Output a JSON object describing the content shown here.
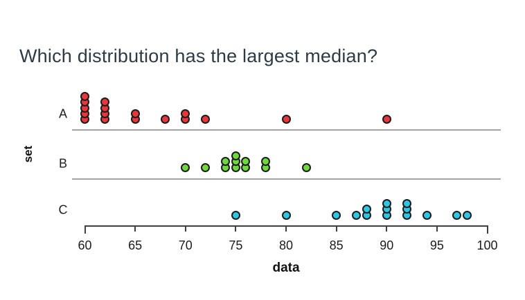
{
  "question": {
    "title": "Which distribution has the largest median?"
  },
  "chart_data": {
    "type": "scatter",
    "subtype": "dotplot",
    "xlabel": "data",
    "ylabel": "set",
    "xlim": [
      60,
      100
    ],
    "x_ticks": [
      60,
      65,
      70,
      75,
      80,
      85,
      90,
      95,
      100
    ],
    "grid": false,
    "legend": "none",
    "rows": [
      {
        "label": "A",
        "color": "#e8363d",
        "values": [
          60,
          60,
          60,
          60,
          60,
          62,
          62,
          62,
          62,
          65,
          65,
          68,
          70,
          70,
          72,
          80,
          90
        ]
      },
      {
        "label": "B",
        "color": "#6fd83f",
        "values": [
          70,
          72,
          74,
          74,
          75,
          75,
          75,
          76,
          76,
          78,
          78,
          82
        ]
      },
      {
        "label": "C",
        "color": "#2fc6e4",
        "values": [
          75,
          80,
          85,
          87,
          88,
          88,
          90,
          90,
          90,
          92,
          92,
          92,
          94,
          97,
          98
        ]
      }
    ],
    "colors": {
      "dot_outline": "#1b1b1b",
      "axis": "#3f3f3f",
      "separator": "#a3a3a3",
      "title_text": "#2d3b45"
    }
  }
}
